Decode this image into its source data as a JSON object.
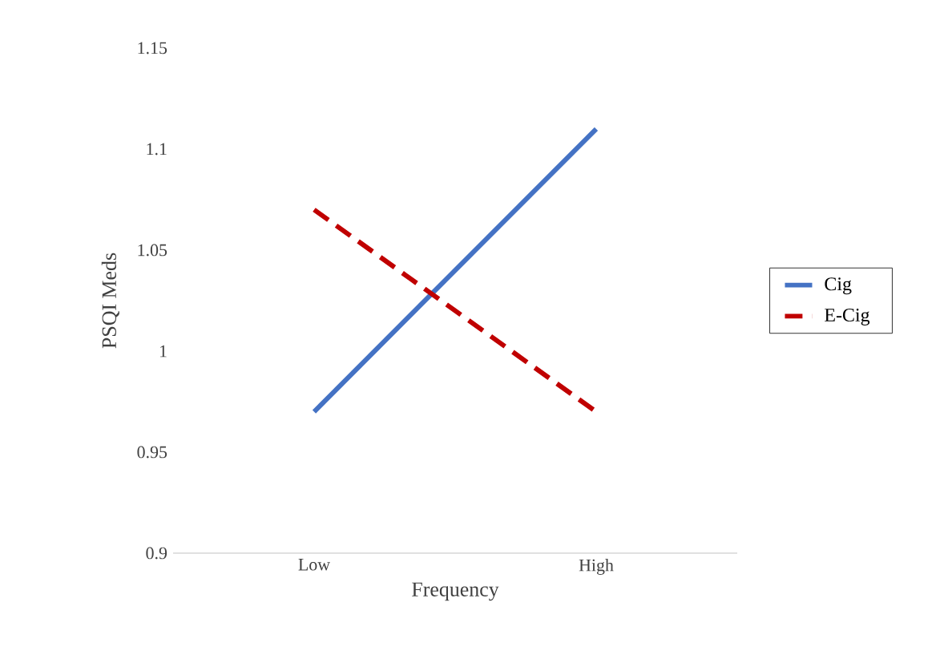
{
  "chart_data": {
    "type": "line",
    "xlabel": "Frequency",
    "ylabel": "PSQI Meds",
    "categories": [
      "Low",
      "High"
    ],
    "series": [
      {
        "name": "Cig",
        "color": "#4472c4",
        "values": [
          0.97,
          1.11
        ],
        "line_style": "solid"
      },
      {
        "name": "E-Cig",
        "color": "#c00000",
        "values": [
          1.07,
          0.97
        ],
        "line_style": "dashed"
      }
    ],
    "ylim": [
      0.9,
      1.15
    ],
    "yticks": [
      0.9,
      0.95,
      1,
      1.05,
      1.1,
      1.15
    ],
    "grid": false,
    "legend": "right",
    "marker": "none"
  }
}
